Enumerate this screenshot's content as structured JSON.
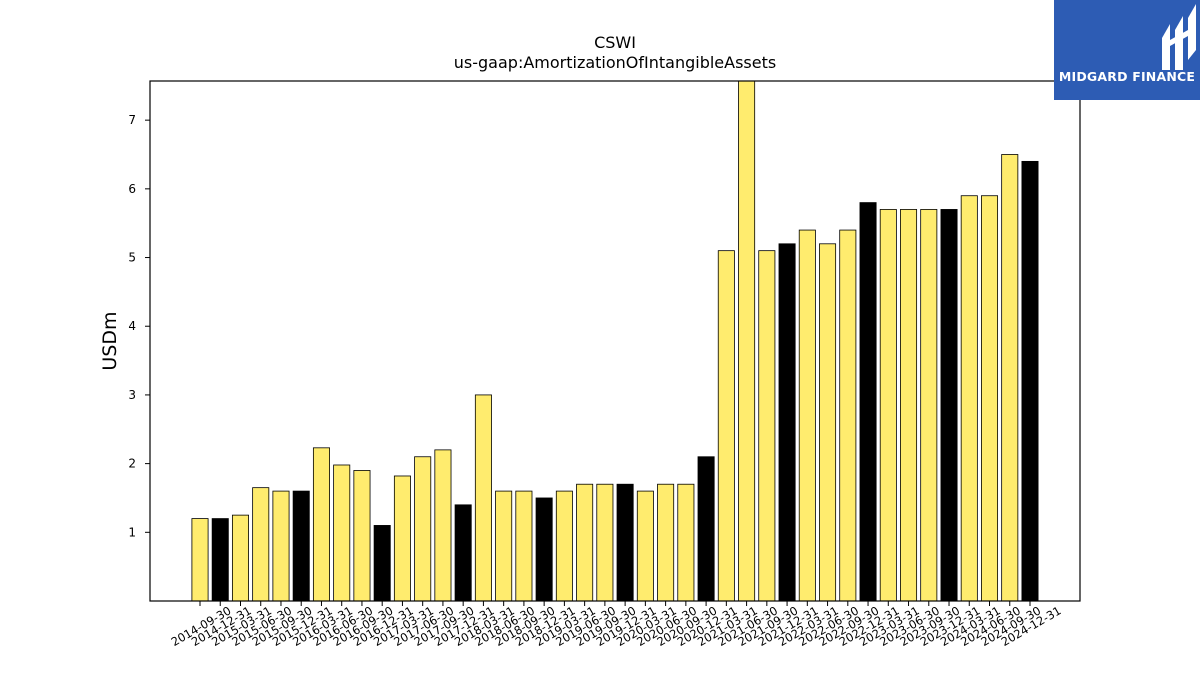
{
  "chart_data": {
    "type": "bar",
    "title": "CSWI",
    "subtitle": "us-gaap:AmortizationOfIntangibleAssets",
    "xlabel": "",
    "ylabel": "USDm",
    "ylim": [
      0,
      7.57
    ],
    "yticks": [
      1,
      2,
      3,
      4,
      5,
      6,
      7
    ],
    "grid": false,
    "categories": [
      "2014-09-30",
      "2014-12-31",
      "2015-03-31",
      "2015-06-30",
      "2015-09-30",
      "2015-12-31",
      "2016-03-31",
      "2016-06-30",
      "2016-09-30",
      "2016-12-31",
      "2017-03-31",
      "2017-06-30",
      "2017-09-30",
      "2017-12-31",
      "2018-03-31",
      "2018-06-30",
      "2018-09-30",
      "2018-12-31",
      "2019-03-31",
      "2019-06-30",
      "2019-09-30",
      "2019-12-31",
      "2020-03-31",
      "2020-06-30",
      "2020-09-30",
      "2020-12-31",
      "2021-03-31",
      "2021-06-30",
      "2021-09-30",
      "2021-12-31",
      "2022-03-31",
      "2022-06-30",
      "2022-09-30",
      "2022-12-31",
      "2023-03-31",
      "2023-06-30",
      "2023-09-30",
      "2023-12-31",
      "2024-03-31",
      "2024-06-30",
      "2024-09-30",
      "2024-12-31"
    ],
    "values": [
      1.2,
      1.2,
      1.25,
      1.65,
      1.6,
      1.6,
      2.23,
      1.98,
      1.9,
      1.1,
      1.82,
      2.1,
      2.2,
      1.4,
      3.0,
      1.6,
      1.6,
      1.5,
      1.6,
      1.7,
      1.7,
      1.7,
      1.6,
      1.7,
      1.7,
      2.1,
      5.1,
      7.6,
      5.1,
      5.2,
      5.4,
      5.2,
      5.4,
      5.8,
      5.7,
      5.7,
      5.7,
      5.7,
      5.9,
      5.9,
      6.5,
      6.4
    ],
    "highlight": [
      false,
      true,
      false,
      false,
      false,
      true,
      false,
      false,
      false,
      true,
      false,
      false,
      false,
      true,
      false,
      false,
      false,
      true,
      false,
      false,
      false,
      true,
      false,
      false,
      false,
      true,
      false,
      false,
      false,
      true,
      false,
      false,
      false,
      true,
      false,
      false,
      false,
      true,
      false,
      false,
      false,
      true
    ],
    "colors": {
      "bar": "#ffec6e",
      "highlight": "#000000",
      "edge": "#000000"
    }
  },
  "logo": {
    "text": "MIDGARD FINANCE",
    "color": "#2d5cb4"
  }
}
